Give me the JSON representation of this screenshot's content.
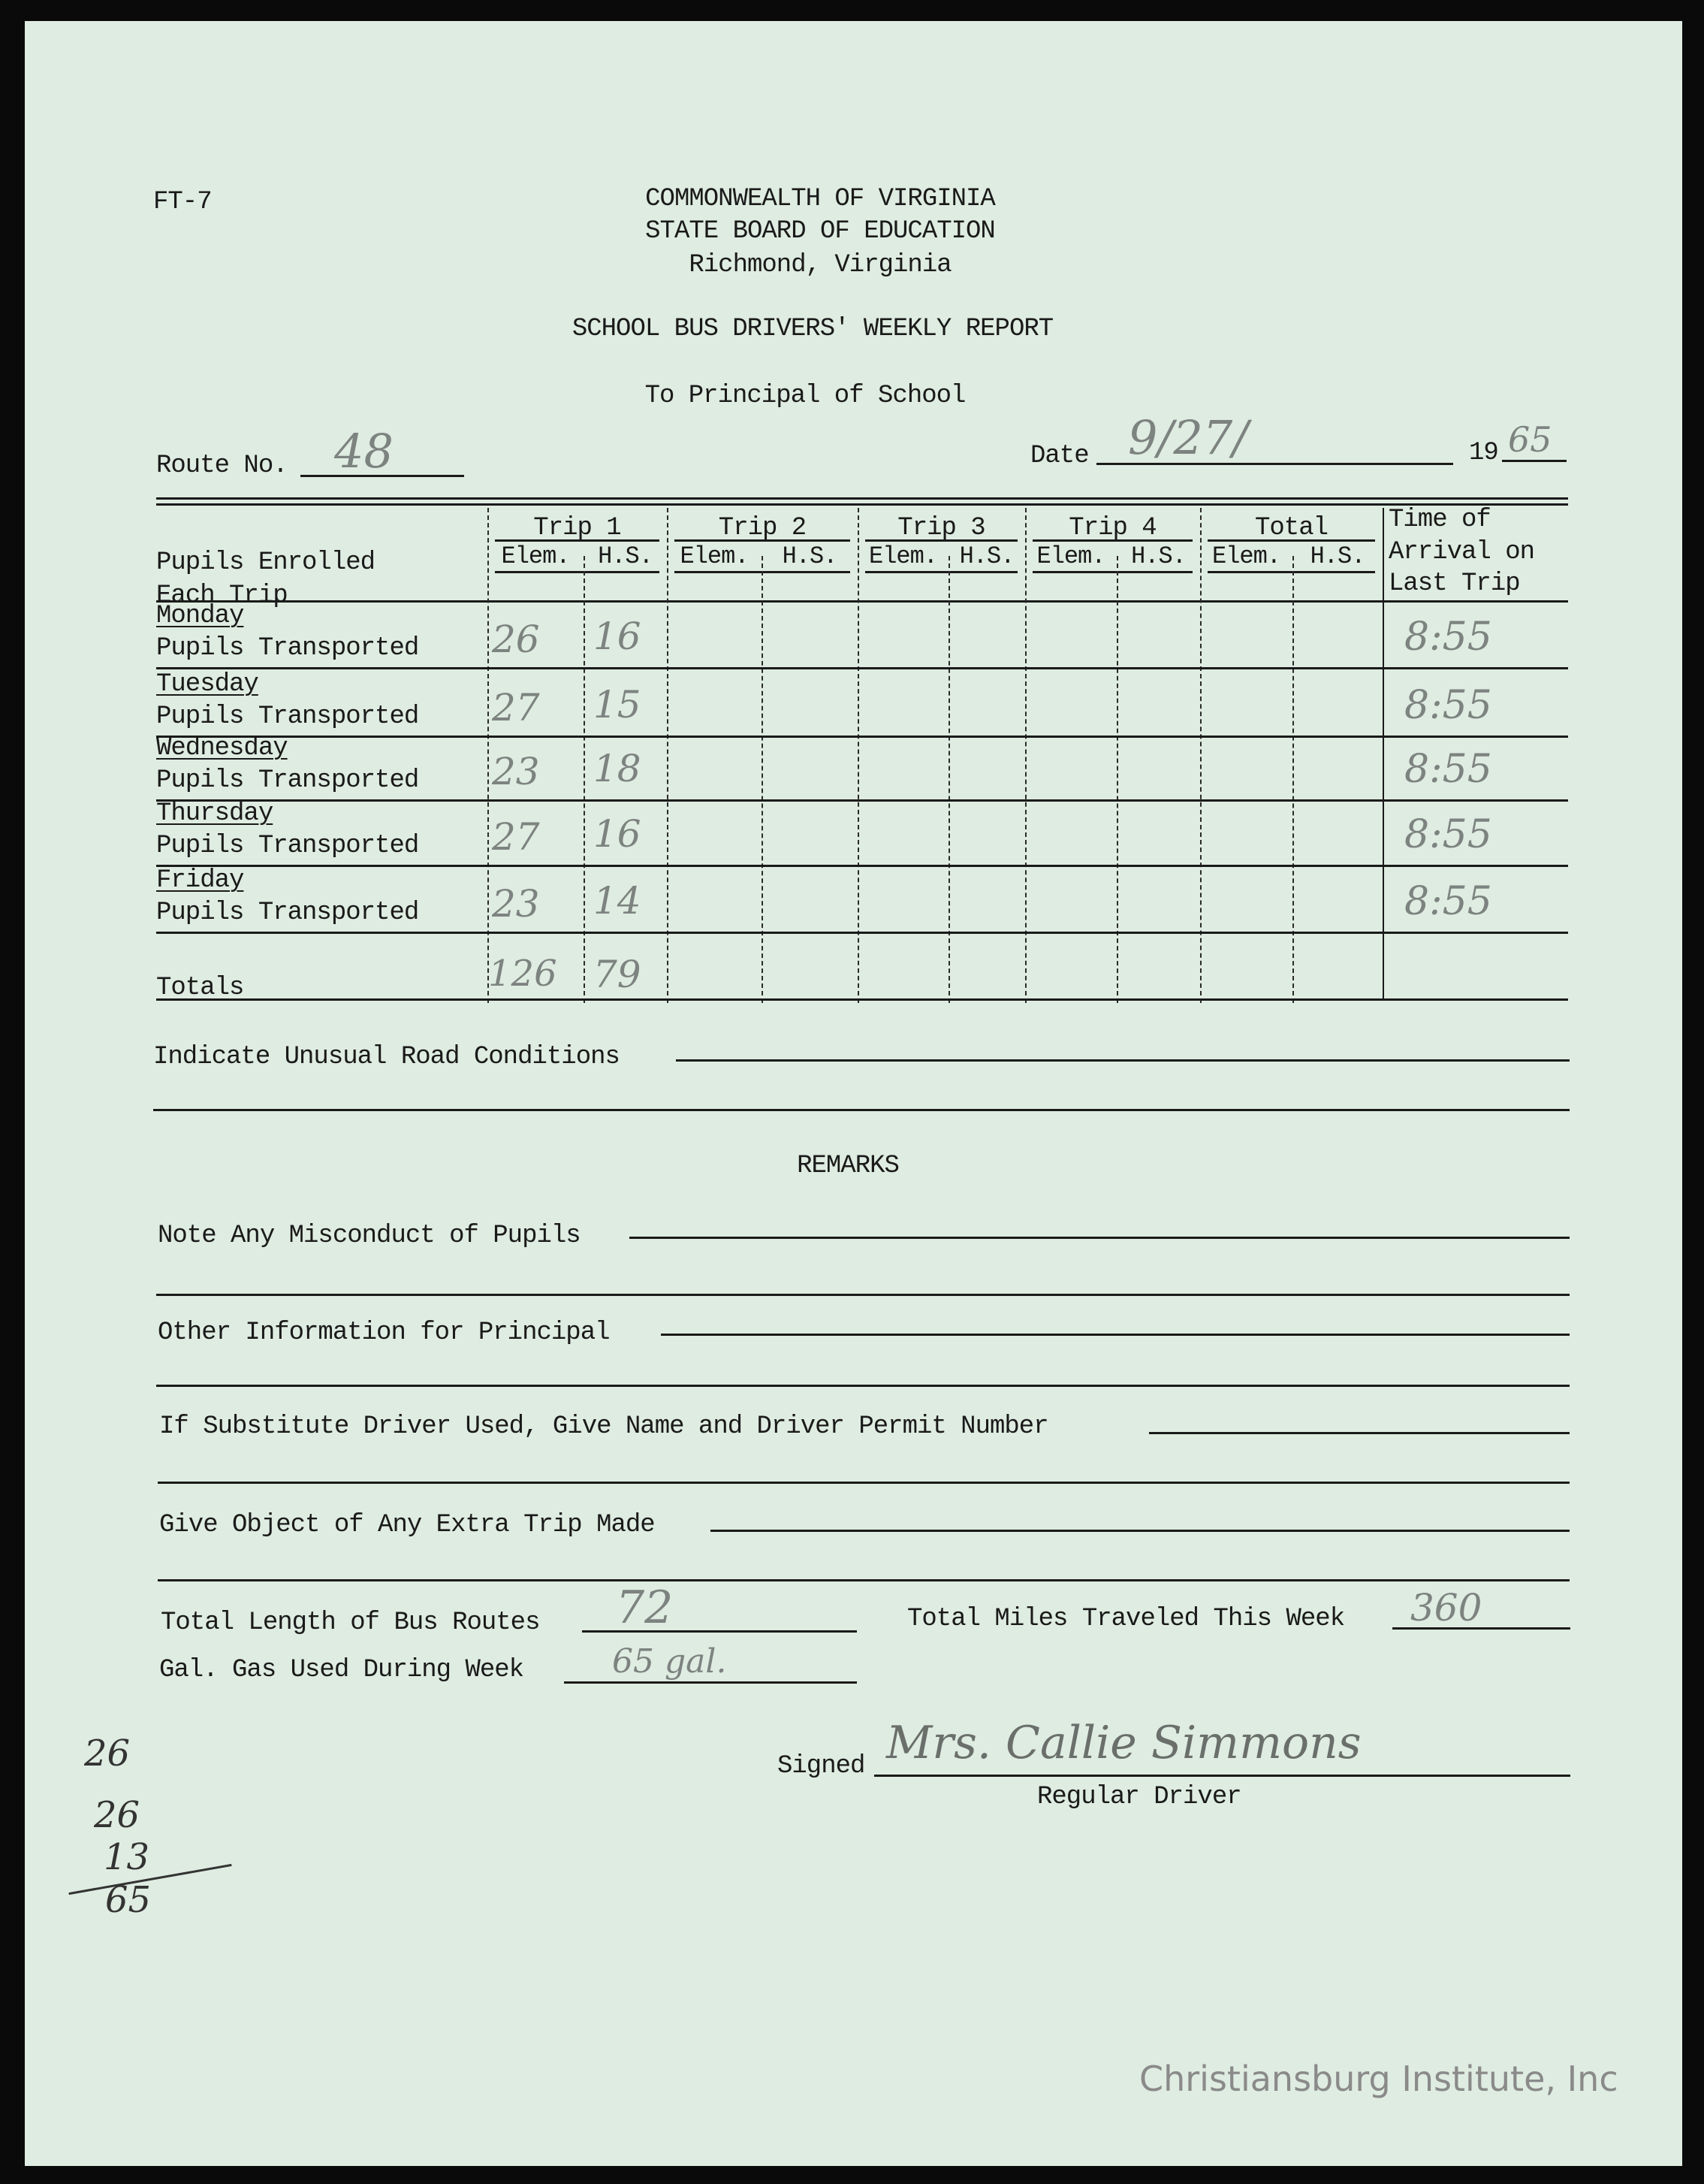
{
  "form_code": "FT-7",
  "header": {
    "line1": "COMMONWEALTH OF VIRGINIA",
    "line2": "STATE BOARD OF EDUCATION",
    "line3": "Richmond, Virginia"
  },
  "title": "SCHOOL BUS DRIVERS' WEEKLY REPORT",
  "subtitle": "To Principal of School",
  "route": {
    "label": "Route No.",
    "value": "48"
  },
  "date": {
    "label": "Date",
    "value": "9/27/",
    "year_prefix": "19",
    "year_value": "65"
  },
  "table": {
    "row_header_line1": "Pupils Enrolled",
    "row_header_line2": "Each Trip",
    "groups": [
      "Trip 1",
      "Trip 2",
      "Trip 3",
      "Trip 4",
      "Total"
    ],
    "sub_elem": "Elem.",
    "sub_hs": "H.S.",
    "time_header": [
      "Time of",
      "Arrival on",
      "Last Trip"
    ],
    "row_sublabel": "Pupils Transported",
    "rows": [
      {
        "day": "Monday",
        "trip1_elem": "26",
        "trip1_hs": "16",
        "time": "8:55"
      },
      {
        "day": "Tuesday",
        "trip1_elem": "27",
        "trip1_hs": "15",
        "time": "8:55"
      },
      {
        "day": "Wednesday",
        "trip1_elem": "23",
        "trip1_hs": "18",
        "time": "8:55"
      },
      {
        "day": "Thursday",
        "trip1_elem": "27",
        "trip1_hs": "16",
        "time": "8:55"
      },
      {
        "day": "Friday",
        "trip1_elem": "23",
        "trip1_hs": "14",
        "time": "8:55"
      }
    ],
    "totals_label": "Totals",
    "totals": {
      "trip1_elem": "126",
      "trip1_hs": "79"
    }
  },
  "road_conditions_label": "Indicate Unusual Road Conditions",
  "remarks_heading": "REMARKS",
  "misconduct_label": "Note Any Misconduct of Pupils",
  "other_info_label": "Other Information for Principal",
  "substitute_label": "If Substitute Driver Used, Give Name and Driver Permit Number",
  "extra_trip_label": "Give Object of Any Extra Trip Made",
  "route_length": {
    "label": "Total Length of Bus Routes",
    "value": "72"
  },
  "miles": {
    "label": "Total Miles Traveled This Week",
    "value": "360"
  },
  "gas": {
    "label": "Gal. Gas Used During Week",
    "value": "65 gal."
  },
  "signed": {
    "label": "Signed",
    "value": "Mrs. Callie Simmons",
    "role": "Regular Driver"
  },
  "margin_sum": [
    "26",
    "26",
    "13",
    "65"
  ],
  "watermark": "Christiansburg Institute, Inc"
}
